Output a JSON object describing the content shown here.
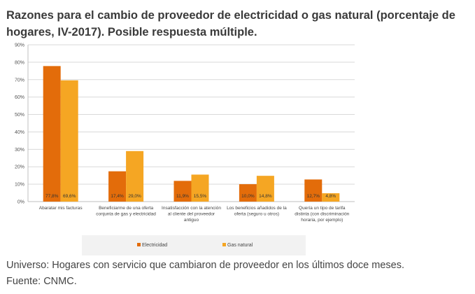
{
  "title": "Razones para el cambio de proveedor de electricidad o gas natural (porcentaje de hogares, IV-2017). Posible respuesta múltiple.",
  "footnotes": {
    "universe": "Universo: Hogares con servicio que cambiaron de proveedor en los últimos doce meses.",
    "source": "Fuente: CNMC."
  },
  "colors": {
    "electricidad": "#e36c0a",
    "gas_natural": "#f5a623",
    "grid": "#d9d9d9",
    "legend_box": "#f2f2f2"
  },
  "chart_data": {
    "type": "bar",
    "categories": [
      "Abaratar mis facturas",
      "Beneficiarme de una oferta conjunta de gas y electricidad",
      "Insatisfacción con la atención al cliente del proveedor antiguo",
      "Los beneficios añadidos de la oferta (seguro u otros)",
      "Quería un tipo de tarifa distinta (con discriminación horaria, por ejemplo)"
    ],
    "category_lines": [
      [
        "Abaratar mis facturas"
      ],
      [
        "Beneficiarme de una oferta",
        "conjunta de gas y electricidad"
      ],
      [
        "Insatisfacción con la atención",
        "al cliente del proveedor",
        "antiguo"
      ],
      [
        "Los beneficios añadidos de la",
        "oferta (seguro u otros)"
      ],
      [
        "Quería un tipo de tarifa",
        "distinta (con discriminación",
        "horaria, por ejemplo)"
      ]
    ],
    "series": [
      {
        "name": "Electricidad",
        "values": [
          77.8,
          17.4,
          11.9,
          10.0,
          12.7
        ],
        "labels": [
          "77,8%",
          "17,4%",
          "11,9%",
          "10,0%",
          "12,7%"
        ]
      },
      {
        "name": "Gas natural",
        "values": [
          69.6,
          29.0,
          15.5,
          14.8,
          4.8
        ],
        "labels": [
          "69,6%",
          "29,0%",
          "15,5%",
          "14,8%",
          "4,8%"
        ]
      }
    ],
    "y_ticks": [
      0,
      10,
      20,
      30,
      40,
      50,
      60,
      70,
      80,
      90
    ],
    "y_tick_labels": [
      "0%",
      "10%",
      "20%",
      "30%",
      "40%",
      "50%",
      "60%",
      "70%",
      "80%",
      "90%"
    ],
    "ylim": [
      0,
      90
    ],
    "grid": true,
    "legend_position": "bottom"
  }
}
